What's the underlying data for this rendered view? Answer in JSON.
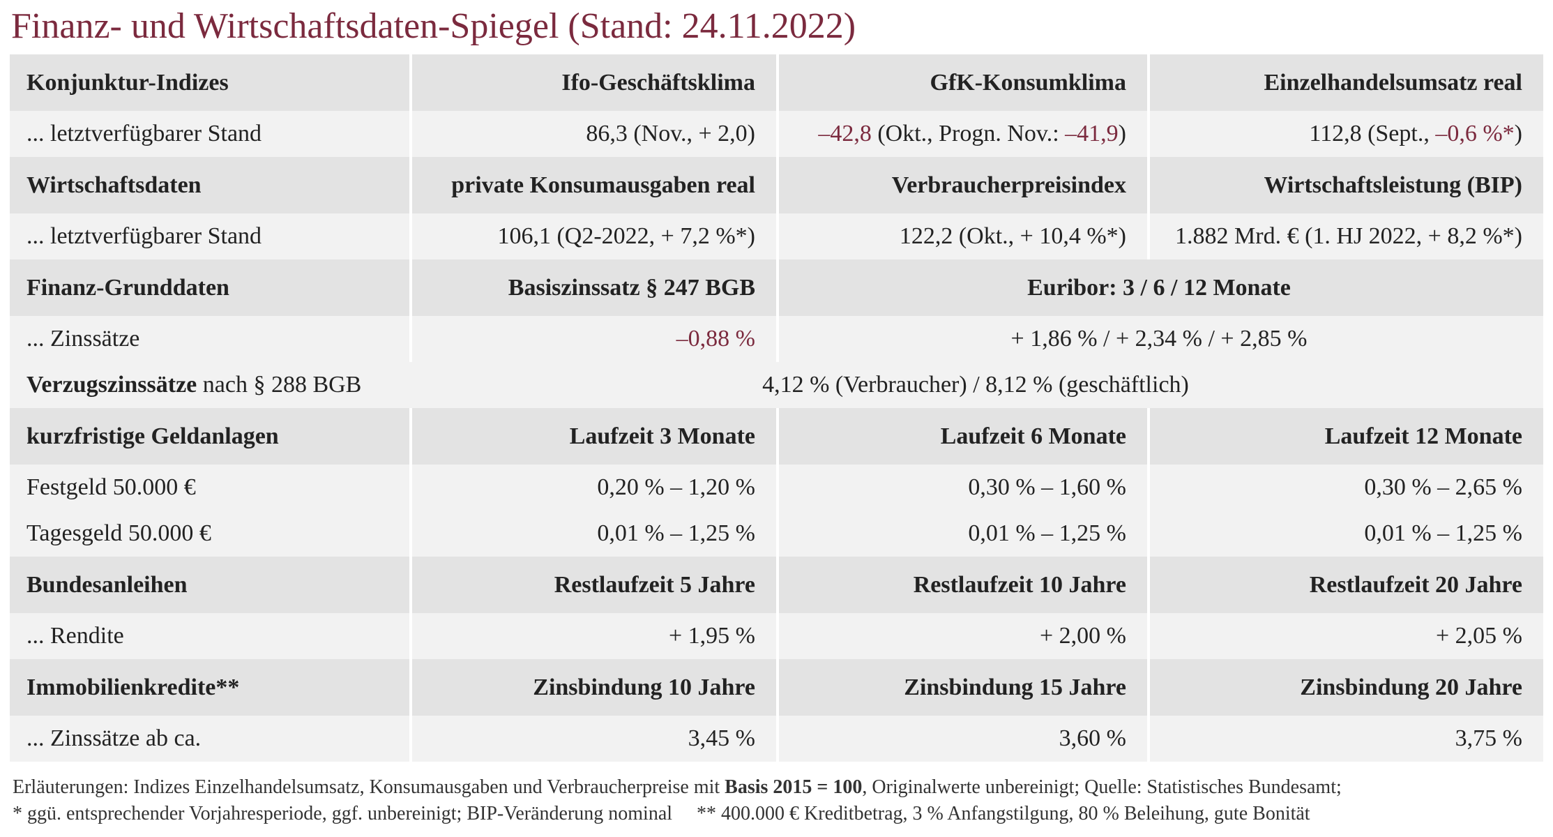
{
  "title": "Finanz- und Wirtschaftsdaten-Spiegel (Stand: 24.11.2022)",
  "table": {
    "rows": [
      {
        "kind": "header",
        "cells": [
          {
            "text": "Konjunktur-Indizes"
          },
          {
            "text": "Ifo-Geschäftsklima"
          },
          {
            "text": "GfK-Konsumklima"
          },
          {
            "text": "Einzelhandelsumsatz real"
          }
        ]
      },
      {
        "kind": "data",
        "cells": [
          {
            "text": "... letztverfügbarer Stand"
          },
          {
            "text": "86,3 (Nov., + 2,0)"
          },
          {
            "parts": [
              {
                "text": "–42,8",
                "style": "accent"
              },
              {
                "text": " (Okt., Progn. Nov.: "
              },
              {
                "text": "–41,9",
                "style": "accent"
              },
              {
                "text": ")"
              }
            ]
          },
          {
            "parts": [
              {
                "text": "112,8 (Sept., "
              },
              {
                "text": "–0,6 %*",
                "style": "accent"
              },
              {
                "text": ")"
              }
            ]
          }
        ]
      },
      {
        "kind": "header",
        "cells": [
          {
            "text": "Wirtschaftsdaten"
          },
          {
            "text": "private Konsumausgaben real"
          },
          {
            "text": "Verbraucherpreisindex"
          },
          {
            "text": "Wirtschaftsleistung (BIP)"
          }
        ]
      },
      {
        "kind": "data",
        "cells": [
          {
            "text": "... letztverfügbarer Stand"
          },
          {
            "text": "106,1 (Q2-2022, + 7,2 %*)"
          },
          {
            "text": "122,2 (Okt., + 10,4 %*)"
          },
          {
            "text": "1.882 Mrd. € (1. HJ 2022, + 8,2 %*)"
          }
        ]
      },
      {
        "kind": "header",
        "cells": [
          {
            "text": "Finanz-Grunddaten"
          },
          {
            "text": "Basiszinssatz § 247 BGB"
          },
          {
            "text": "Euribor: 3 / 6 / 12 Monate",
            "colspan": 2
          }
        ]
      },
      {
        "kind": "data",
        "cells": [
          {
            "text": "... Zinssätze"
          },
          {
            "text": "–0,88 %",
            "style": "accent"
          },
          {
            "text": "+ 1,86 % / + 2,34 % / + 2,85 %",
            "colspan": 2
          }
        ]
      },
      {
        "kind": "data",
        "cells": [
          {
            "parts": [
              {
                "text": "Verzugszinssätze",
                "style": "bold"
              },
              {
                "text": " nach § 288 BGB"
              }
            ]
          },
          {
            "text": "4,12 % (Verbraucher) / 8,12 % (geschäftlich)",
            "colspan": 3
          }
        ]
      },
      {
        "kind": "header",
        "cells": [
          {
            "text": "kurzfristige Geldanlagen"
          },
          {
            "text": "Laufzeit 3 Monate"
          },
          {
            "text": "Laufzeit 6 Monate"
          },
          {
            "text": "Laufzeit 12 Monate"
          }
        ]
      },
      {
        "kind": "data",
        "cells": [
          {
            "text": "Festgeld 50.000 €"
          },
          {
            "text": "0,20 % – 1,20 %"
          },
          {
            "text": "0,30 % – 1,60 %"
          },
          {
            "text": "0,30 % – 2,65 %"
          }
        ]
      },
      {
        "kind": "data",
        "cells": [
          {
            "text": "Tagesgeld 50.000 €"
          },
          {
            "text": "0,01 % – 1,25 %"
          },
          {
            "text": "0,01 % – 1,25 %"
          },
          {
            "text": "0,01 % – 1,25 %"
          }
        ]
      },
      {
        "kind": "header",
        "cells": [
          {
            "text": "Bundesanleihen"
          },
          {
            "text": "Restlaufzeit 5 Jahre"
          },
          {
            "text": "Restlaufzeit 10 Jahre"
          },
          {
            "text": "Restlaufzeit 20 Jahre"
          }
        ]
      },
      {
        "kind": "data",
        "cells": [
          {
            "text": "... Rendite"
          },
          {
            "text": "+ 1,95 %"
          },
          {
            "text": "+ 2,00 %"
          },
          {
            "text": "+ 2,05 %"
          }
        ]
      },
      {
        "kind": "header",
        "cells": [
          {
            "text": "Immobilienkredite**"
          },
          {
            "text": "Zinsbindung 10 Jahre"
          },
          {
            "text": "Zinsbindung 15 Jahre"
          },
          {
            "text": "Zinsbindung 20 Jahre"
          }
        ]
      },
      {
        "kind": "data",
        "cells": [
          {
            "text": "... Zinssätze ab ca."
          },
          {
            "text": "3,45 %"
          },
          {
            "text": "3,60 %"
          },
          {
            "text": "3,75 %"
          }
        ]
      }
    ]
  },
  "footnotes": [
    {
      "parts": [
        {
          "text": "Erläuterungen: Indizes Einzelhandelsumsatz, Konsumausgaben und Verbraucherpreise mit "
        },
        {
          "text": "Basis 2015 = 100",
          "style": "bold"
        },
        {
          "text": ", Originalwerte unbereinigt; Quelle: Statistisches Bundesamt;"
        }
      ]
    },
    {
      "parts": [
        {
          "text": "* ggü. entsprechender Vorjahresperiode, ggf. unbereinigt; BIP-Veränderung nominal     ** 400.000 € Kreditbetrag, 3 % Anfangstilgung, 80 % Beleihung, gute Bonität"
        }
      ]
    }
  ]
}
